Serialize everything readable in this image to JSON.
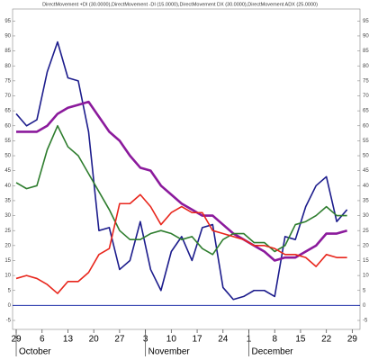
{
  "chart_data": {
    "type": "line",
    "title": "DirectMovement +DI (30.0000),DirectMovement -DI (15.0000),DirectMovement DX (30.0000),DirectMovement ADX (25.0000)",
    "x": [
      0,
      2,
      4,
      6,
      8,
      10,
      12,
      14,
      16,
      18,
      20,
      22,
      24,
      26,
      28,
      30,
      32,
      34,
      36,
      38,
      40,
      42,
      44,
      46,
      48,
      50,
      52,
      54,
      56,
      58,
      60,
      62,
      64
    ],
    "xlim": [
      -0.7,
      66.5
    ],
    "xticks": [
      {
        "value": 0,
        "label": "29"
      },
      {
        "value": 5,
        "label": "6"
      },
      {
        "value": 10,
        "label": "13"
      },
      {
        "value": 15,
        "label": "20"
      },
      {
        "value": 20,
        "label": "27"
      },
      {
        "value": 25,
        "label": "3"
      },
      {
        "value": 30,
        "label": "10"
      },
      {
        "value": 35,
        "label": "17"
      },
      {
        "value": 40,
        "label": "24"
      },
      {
        "value": 45,
        "label": "1"
      },
      {
        "value": 50,
        "label": "8"
      },
      {
        "value": 55,
        "label": "15"
      },
      {
        "value": 60,
        "label": "22"
      },
      {
        "value": 65,
        "label": "29"
      }
    ],
    "month_labels": [
      {
        "value": 0,
        "label": "October"
      },
      {
        "value": 25,
        "label": "November"
      },
      {
        "value": 45,
        "label": "December"
      }
    ],
    "ylim": [
      -8,
      99
    ],
    "yticks": [
      -5,
      0,
      5,
      10,
      15,
      20,
      25,
      30,
      35,
      40,
      45,
      50,
      55,
      60,
      65,
      70,
      75,
      80,
      85,
      90,
      95
    ],
    "zero_line_color": "#1f2fa8",
    "series": [
      {
        "color": "#1c1c8c",
        "values": [
          64,
          60,
          62,
          78,
          88,
          76,
          75,
          58,
          25,
          26,
          12,
          15,
          28,
          12,
          5,
          18,
          23,
          15,
          26,
          27,
          6,
          2,
          3,
          5,
          5,
          3,
          23,
          22,
          33,
          40,
          43,
          28,
          32
        ]
      },
      {
        "color": "#8b1a9c",
        "values": [
          58,
          58,
          58,
          60,
          64,
          66,
          67,
          68,
          63,
          58,
          55,
          50,
          46,
          45,
          40,
          37,
          34,
          32,
          30,
          30,
          27,
          24,
          22,
          20,
          18,
          15,
          16,
          16,
          18,
          20,
          24,
          24,
          25
        ]
      },
      {
        "color": "#2e7d2e",
        "values": [
          41,
          39,
          40,
          52,
          60,
          53,
          50,
          44,
          38,
          32,
          25,
          22,
          22,
          24,
          25,
          24,
          22,
          23,
          19,
          17,
          22,
          24,
          24,
          21,
          21,
          18,
          20,
          27,
          28,
          30,
          33,
          30,
          30
        ]
      },
      {
        "color": "#e8261c",
        "values": [
          9,
          10,
          9,
          7,
          4,
          8,
          8,
          11,
          17,
          19,
          34,
          34,
          37,
          33,
          27,
          31,
          33,
          31,
          31,
          25,
          24,
          23,
          22,
          20,
          20,
          19,
          17,
          17,
          16,
          13,
          17,
          16,
          16
        ]
      }
    ]
  }
}
